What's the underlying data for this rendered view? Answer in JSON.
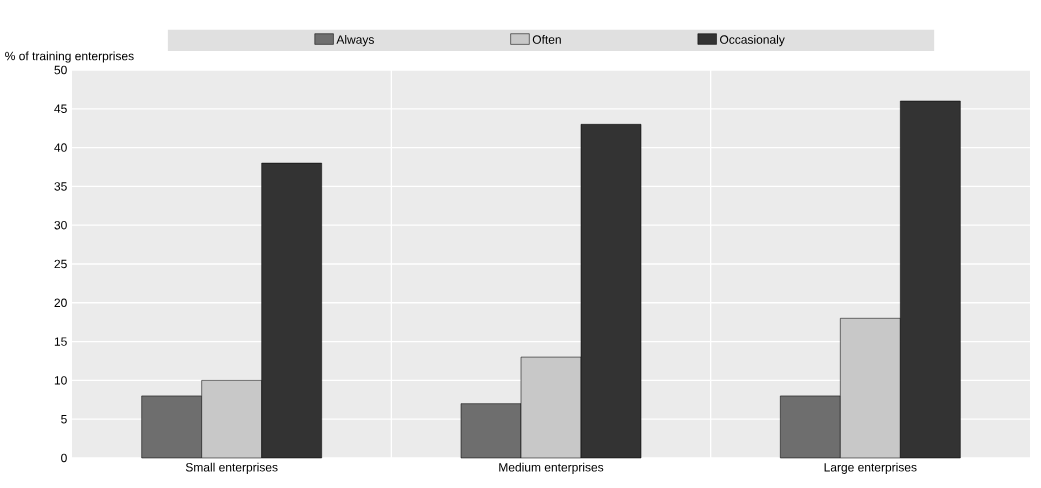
{
  "chart_data": {
    "type": "bar",
    "ylabel": "% of training enterprises",
    "categories": [
      "Small enterprises",
      "Medium enterprises",
      "Large enterprises"
    ],
    "series": [
      {
        "name": "Always",
        "color": "#6e6e6e",
        "values": [
          8,
          7,
          8
        ]
      },
      {
        "name": "Often",
        "color": "#c8c8c8",
        "values": [
          10,
          13,
          18
        ]
      },
      {
        "name": "Occasionaly",
        "color": "#333333",
        "values": [
          38,
          43,
          46
        ]
      }
    ],
    "ylim": [
      0,
      50
    ],
    "yticks": [
      0,
      5,
      10,
      15,
      20,
      25,
      30,
      35,
      40,
      45,
      50
    ],
    "grid": true,
    "legend": "top"
  }
}
